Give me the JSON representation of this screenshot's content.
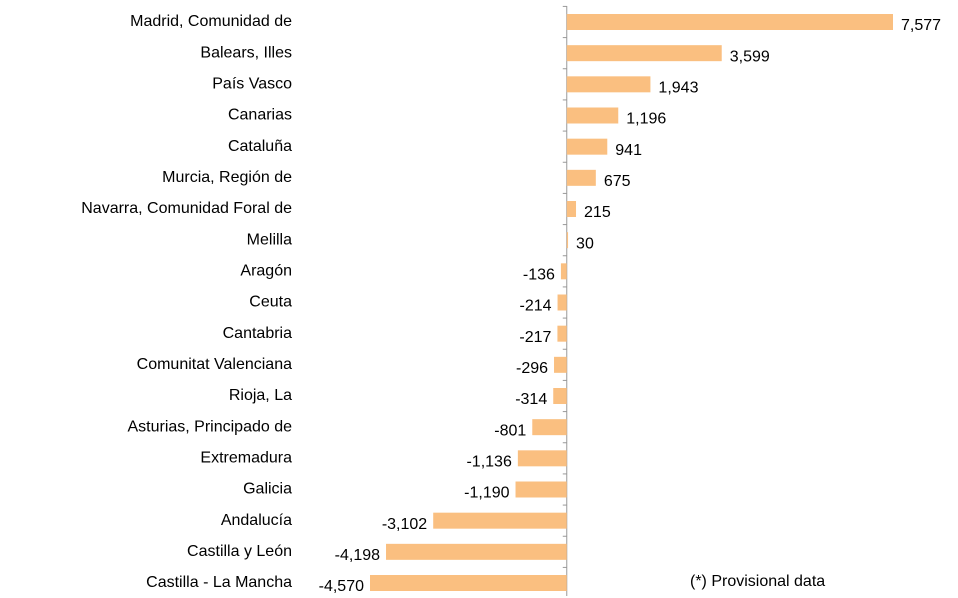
{
  "chart_data": {
    "type": "bar",
    "orientation": "horizontal",
    "categories": [
      "Madrid, Comunidad de",
      "Balears, Illes",
      "País Vasco",
      "Canarias",
      "Cataluña",
      "Murcia, Región de",
      "Navarra, Comunidad Foral de",
      "Melilla",
      "Aragón",
      "Ceuta",
      "Cantabria",
      "Comunitat Valenciana",
      "Rioja, La",
      "Asturias, Principado de",
      "Extremadura",
      "Galicia",
      "Andalucía",
      "Castilla y León",
      "Castilla - La Mancha"
    ],
    "values": [
      7577,
      3599,
      1943,
      1196,
      941,
      675,
      215,
      30,
      -136,
      -214,
      -217,
      -296,
      -314,
      -801,
      -1136,
      -1190,
      -3102,
      -4198,
      -4570
    ],
    "value_labels": [
      "7,577",
      "3,599",
      "1,943",
      "1,196",
      "941",
      "675",
      "215",
      "30",
      "-136",
      "-214",
      "-217",
      "-296",
      "-314",
      "-801",
      "-1,136",
      "-1,190",
      "-3,102",
      "-4,198",
      "-4,570"
    ],
    "color": "#fabf80",
    "annotation": "(*) Provisional data"
  }
}
